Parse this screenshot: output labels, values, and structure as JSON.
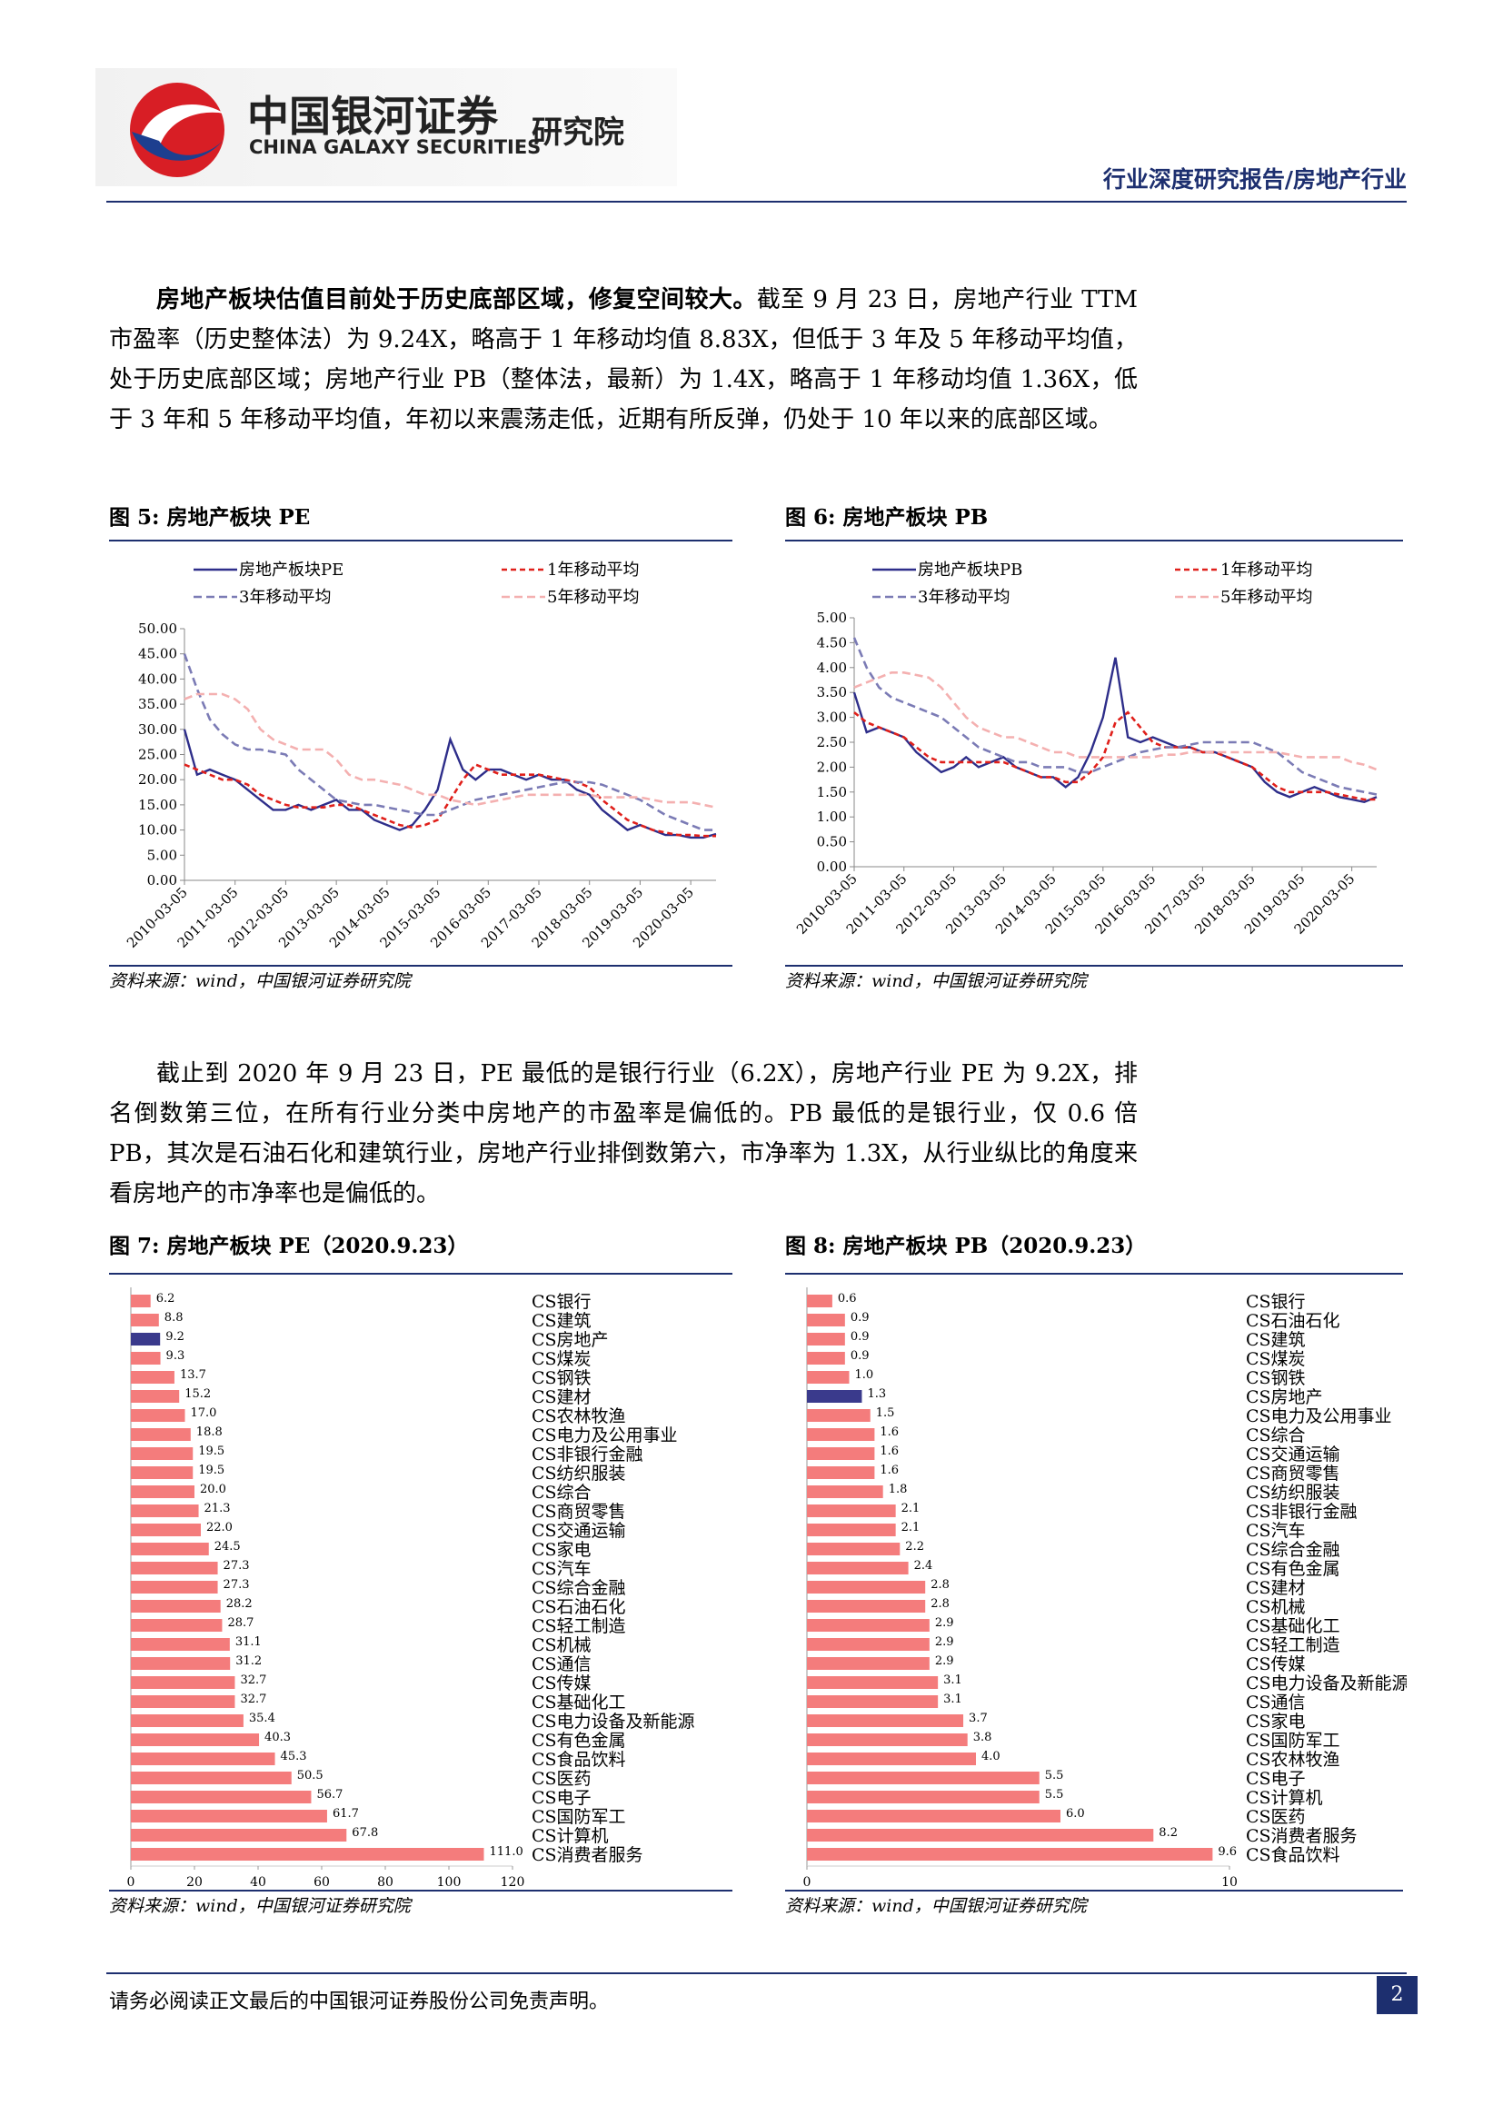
{
  "header": {
    "brand": "中国银河证券",
    "brand_en": "CHINA GALAXY SECURITIES",
    "institute": "研究院",
    "report_type": "行业深度研究报告/房地产行业"
  },
  "paragraphs": [
    {
      "bold": "房地产板块估值目前处于历史底部区域，修复空间较大。",
      "text": "截至 9 月 23 日，房地产行业 TTM 市盈率（历史整体法）为 9.24X，略高于 1 年移动均值 8.83X，但低于 3 年及 5 年移动平均值，处于历史底部区域；房地产行业 PB（整体法，最新）为 1.4X，略高于 1 年移动均值 1.36X，低于 3 年和 5 年移动平均值，年初以来震荡走低，近期有所反弹，仍处于 10 年以来的底部区域。"
    },
    {
      "text": "截止到 2020 年 9 月 23 日，PE 最低的是银行行业（6.2X），房地产行业 PE 为 9.2X，排名倒数第三位，在所有行业分类中房地产的市盈率是偏低的。PB 最低的是银行业，仅 0.6 倍 PB，其次是石油石化和建筑行业，房地产行业排倒数第六，市净率为 1.3X，从行业纵比的角度来看房地产的市净率也是偏低的。"
    }
  ],
  "chart_data": [
    {
      "type": "line",
      "title": "图 5: 房地产板块 PE",
      "source": "资料来源：wind，中国银河证券研究院",
      "categories": [
        "2010-03-05",
        null,
        null,
        null,
        "2011-03-05",
        null,
        null,
        null,
        "2012-03-05",
        null,
        null,
        null,
        "2013-03-05",
        null,
        null,
        null,
        "2014-03-05",
        null,
        null,
        null,
        "2015-03-05",
        null,
        null,
        null,
        "2016-03-05",
        null,
        null,
        null,
        "2017-03-05",
        null,
        null,
        null,
        "2018-03-05",
        null,
        null,
        null,
        "2019-03-05",
        null,
        null,
        null,
        "2020-03-05",
        null,
        null
      ],
      "series": [
        {
          "name": "房地产板块PE",
          "color": "#2e2e8a",
          "dash": "none",
          "values": [
            30,
            21,
            22,
            21,
            20,
            18,
            16,
            14,
            14,
            15,
            14,
            15,
            16,
            14,
            14,
            12,
            11,
            10,
            11,
            14,
            18,
            28,
            22,
            20,
            22,
            22,
            21,
            20,
            21,
            20,
            20,
            18,
            17,
            14,
            12,
            10,
            11,
            10,
            9,
            9,
            8.5,
            8.5,
            9.2
          ]
        },
        {
          "name": "1年移动平均",
          "color": "#e0201b",
          "dash": "6,4",
          "values": [
            23,
            22,
            21,
            20,
            20,
            19,
            17,
            16,
            15,
            14.5,
            14.5,
            14.5,
            15,
            15,
            14,
            13,
            12,
            11,
            10.5,
            11,
            12,
            16,
            20,
            23,
            22,
            21,
            21,
            21,
            21,
            20.5,
            20,
            19.5,
            18.5,
            16,
            14,
            12,
            11,
            10,
            9.5,
            9,
            9,
            8.8,
            8.8
          ]
        },
        {
          "name": "3年移动平均",
          "color": "#7b7bb5",
          "dash": "9,5",
          "values": [
            45,
            38,
            32,
            29,
            27,
            26,
            26,
            25.5,
            25,
            22,
            20,
            18,
            16,
            15.5,
            15,
            15,
            14.5,
            14,
            13.5,
            13,
            13,
            14,
            15,
            16,
            16.5,
            17,
            17.5,
            18,
            18.5,
            19,
            19.5,
            19.5,
            19.5,
            19,
            18,
            17,
            16,
            14.5,
            13,
            12,
            11,
            10,
            10
          ]
        },
        {
          "name": "5年移动平均",
          "color": "#f4b0b0",
          "dash": "9,5",
          "values": [
            36,
            37,
            37,
            37,
            36,
            34,
            30,
            28,
            27,
            26,
            26,
            26,
            24,
            21,
            20,
            20,
            19.5,
            19,
            18,
            17,
            17,
            16,
            15.5,
            15,
            15.5,
            16,
            16.5,
            17,
            17,
            17,
            17,
            17,
            17,
            16.5,
            16.5,
            16.5,
            16.5,
            16,
            15.5,
            15.5,
            15.5,
            15,
            14.5
          ]
        }
      ],
      "ylim": [
        0,
        50
      ],
      "yticks": [
        {
          "value": 0,
          "label": "0.00"
        },
        {
          "value": 5,
          "label": "5.00"
        },
        {
          "value": 10,
          "label": "10.00"
        },
        {
          "value": 15,
          "label": "15.00"
        },
        {
          "value": 20,
          "label": "20.00"
        },
        {
          "value": 25,
          "label": "25.00"
        },
        {
          "value": 30,
          "label": "30.00"
        },
        {
          "value": 35,
          "label": "35.00"
        },
        {
          "value": 40,
          "label": "40.00"
        },
        {
          "value": 45,
          "label": "45.00"
        },
        {
          "value": 50,
          "label": "50.00"
        }
      ]
    },
    {
      "type": "line",
      "title": "图 6: 房地产板块 PB",
      "source": "资料来源：wind，中国银河证券研究院",
      "categories": [
        "2010-03-05",
        null,
        null,
        null,
        "2011-03-05",
        null,
        null,
        null,
        "2012-03-05",
        null,
        null,
        null,
        "2013-03-05",
        null,
        null,
        null,
        "2014-03-05",
        null,
        null,
        null,
        "2015-03-05",
        null,
        null,
        null,
        "2016-03-05",
        null,
        null,
        null,
        "2017-03-05",
        null,
        null,
        null,
        "2018-03-05",
        null,
        null,
        null,
        "2019-03-05",
        null,
        null,
        null,
        "2020-03-05",
        null,
        null
      ],
      "series": [
        {
          "name": "房地产板块PB",
          "color": "#2e2e8a",
          "dash": "none",
          "values": [
            3.5,
            2.7,
            2.8,
            2.7,
            2.6,
            2.3,
            2.1,
            1.9,
            2.0,
            2.2,
            2.0,
            2.1,
            2.2,
            2.0,
            1.9,
            1.8,
            1.8,
            1.6,
            1.8,
            2.3,
            3.0,
            4.2,
            2.6,
            2.5,
            2.6,
            2.5,
            2.4,
            2.4,
            2.3,
            2.3,
            2.2,
            2.1,
            2.0,
            1.7,
            1.5,
            1.4,
            1.5,
            1.6,
            1.5,
            1.4,
            1.35,
            1.3,
            1.4
          ]
        },
        {
          "name": "1年移动平均",
          "color": "#e0201b",
          "dash": "6,4",
          "values": [
            3.1,
            2.9,
            2.8,
            2.7,
            2.6,
            2.4,
            2.2,
            2.1,
            2.1,
            2.1,
            2.1,
            2.1,
            2.1,
            2.0,
            1.9,
            1.8,
            1.8,
            1.7,
            1.7,
            1.9,
            2.2,
            2.9,
            3.1,
            2.8,
            2.5,
            2.4,
            2.4,
            2.4,
            2.3,
            2.3,
            2.2,
            2.1,
            2.0,
            1.8,
            1.6,
            1.5,
            1.5,
            1.5,
            1.5,
            1.45,
            1.4,
            1.35,
            1.35
          ]
        },
        {
          "name": "3年移动平均",
          "color": "#7b7bb5",
          "dash": "9,5",
          "values": [
            4.6,
            4.0,
            3.6,
            3.4,
            3.3,
            3.2,
            3.1,
            3.0,
            2.8,
            2.6,
            2.4,
            2.3,
            2.2,
            2.1,
            2.1,
            2.0,
            2.0,
            2.0,
            1.9,
            1.9,
            2.0,
            2.1,
            2.2,
            2.3,
            2.35,
            2.4,
            2.4,
            2.45,
            2.5,
            2.5,
            2.5,
            2.5,
            2.5,
            2.4,
            2.3,
            2.1,
            1.9,
            1.8,
            1.7,
            1.6,
            1.55,
            1.5,
            1.45
          ]
        },
        {
          "name": "5年移动平均",
          "color": "#f4b0b0",
          "dash": "9,5",
          "values": [
            3.6,
            3.7,
            3.8,
            3.9,
            3.9,
            3.85,
            3.8,
            3.6,
            3.3,
            3.0,
            2.8,
            2.7,
            2.6,
            2.6,
            2.5,
            2.4,
            2.3,
            2.3,
            2.2,
            2.2,
            2.2,
            2.2,
            2.2,
            2.2,
            2.2,
            2.25,
            2.25,
            2.3,
            2.3,
            2.3,
            2.3,
            2.3,
            2.3,
            2.3,
            2.3,
            2.25,
            2.2,
            2.2,
            2.2,
            2.2,
            2.1,
            2.05,
            1.95
          ]
        }
      ],
      "ylim": [
        0,
        5
      ],
      "yticks": [
        {
          "value": 0,
          "label": "0.00"
        },
        {
          "value": 0.5,
          "label": "0.50"
        },
        {
          "value": 1,
          "label": "1.00"
        },
        {
          "value": 1.5,
          "label": "1.50"
        },
        {
          "value": 2,
          "label": "2.00"
        },
        {
          "value": 2.5,
          "label": "2.50"
        },
        {
          "value": 3,
          "label": "3.00"
        },
        {
          "value": 3.5,
          "label": "3.50"
        },
        {
          "value": 4,
          "label": "4.00"
        },
        {
          "value": 4.5,
          "label": "4.50"
        },
        {
          "value": 5,
          "label": "5.00"
        }
      ]
    },
    {
      "type": "hbar",
      "title": "图 7: 房地产板块 PE（2020.9.23）",
      "source": "资料来源：wind，中国银河证券研究院",
      "categories": [
        "CS银行",
        "CS建筑",
        "CS房地产",
        "CS煤炭",
        "CS钢铁",
        "CS建材",
        "CS农林牧渔",
        "CS电力及公用事业",
        "CS非银行金融",
        "CS纺织服装",
        "CS综合",
        "CS商贸零售",
        "CS交通运输",
        "CS家电",
        "CS汽车",
        "CS综合金融",
        "CS石油石化",
        "CS轻工制造",
        "CS机械",
        "CS通信",
        "CS传媒",
        "CS基础化工",
        "CS电力设备及新能源",
        "CS有色金属",
        "CS食品饮料",
        "CS医药",
        "CS电子",
        "CS国防军工",
        "CS计算机",
        "CS消费者服务"
      ],
      "values": [
        6.2,
        8.8,
        9.2,
        9.3,
        13.7,
        15.2,
        17.0,
        18.8,
        19.5,
        19.5,
        20.0,
        21.3,
        22.0,
        24.5,
        27.3,
        27.3,
        28.2,
        28.7,
        31.1,
        31.2,
        32.7,
        32.7,
        35.4,
        40.3,
        45.3,
        50.5,
        56.7,
        61.7,
        67.8,
        111.0
      ],
      "value_labels": [
        "6.2",
        "8.8",
        "9.2",
        "9.3",
        "13.7",
        "15.2",
        "17.0",
        "18.8",
        "19.5",
        "19.5",
        "20.0",
        "21.3",
        "22.0",
        "24.5",
        "27.3",
        "27.3",
        "28.2",
        "28.7",
        "31.1",
        "31.2",
        "32.7",
        "32.7",
        "35.4",
        "40.3",
        "45.3",
        "50.5",
        "56.7",
        "61.7",
        "67.8",
        "111.0"
      ],
      "colors": [
        "#f47c7c",
        "#f47c7c",
        "#3a3a8c",
        "#f47c7c",
        "#f47c7c",
        "#f47c7c",
        "#f47c7c",
        "#f47c7c",
        "#f47c7c",
        "#f47c7c",
        "#f47c7c",
        "#f47c7c",
        "#f47c7c",
        "#f47c7c",
        "#f47c7c",
        "#f47c7c",
        "#f47c7c",
        "#f47c7c",
        "#f47c7c",
        "#f47c7c",
        "#f47c7c",
        "#f47c7c",
        "#f47c7c",
        "#f47c7c",
        "#f47c7c",
        "#f47c7c",
        "#f47c7c",
        "#f47c7c",
        "#f47c7c",
        "#f47c7c"
      ],
      "xlim": [
        0,
        120
      ],
      "xticks": [
        0,
        20,
        40,
        60,
        80,
        100,
        120
      ]
    },
    {
      "type": "hbar",
      "title": "图 8: 房地产板块 PB（2020.9.23）",
      "source": "资料来源：wind，中国银河证券研究院",
      "categories": [
        "CS银行",
        "CS石油石化",
        "CS建筑",
        "CS煤炭",
        "CS钢铁",
        "CS房地产",
        "CS电力及公用事业",
        "CS综合",
        "CS交通运输",
        "CS商贸零售",
        "CS纺织服装",
        "CS非银行金融",
        "CS汽车",
        "CS综合金融",
        "CS有色金属",
        "CS建材",
        "CS机械",
        "CS基础化工",
        "CS轻工制造",
        "CS传媒",
        "CS电力设备及新能源",
        "CS通信",
        "CS家电",
        "CS国防军工",
        "CS农林牧渔",
        "CS电子",
        "CS计算机",
        "CS医药",
        "CS消费者服务",
        "CS食品饮料"
      ],
      "values": [
        0.6,
        0.9,
        0.9,
        0.9,
        1.0,
        1.3,
        1.5,
        1.6,
        1.6,
        1.6,
        1.8,
        2.1,
        2.1,
        2.2,
        2.4,
        2.8,
        2.8,
        2.9,
        2.9,
        2.9,
        3.1,
        3.1,
        3.7,
        3.8,
        4.0,
        5.5,
        5.5,
        6.0,
        8.2,
        9.6
      ],
      "value_labels": [
        "0.6",
        "0.9",
        "0.9",
        "0.9",
        "1.0",
        "1.3",
        "1.5",
        "1.6",
        "1.6",
        "1.6",
        "1.8",
        "2.1",
        "2.1",
        "2.2",
        "2.4",
        "2.8",
        "2.8",
        "2.9",
        "2.9",
        "2.9",
        "3.1",
        "3.1",
        "3.7",
        "3.8",
        "4.0",
        "5.5",
        "5.5",
        "6.0",
        "8.2",
        "9.6"
      ],
      "colors": [
        "#f47c7c",
        "#f47c7c",
        "#f47c7c",
        "#f47c7c",
        "#f47c7c",
        "#3a3a8c",
        "#f47c7c",
        "#f47c7c",
        "#f47c7c",
        "#f47c7c",
        "#f47c7c",
        "#f47c7c",
        "#f47c7c",
        "#f47c7c",
        "#f47c7c",
        "#f47c7c",
        "#f47c7c",
        "#f47c7c",
        "#f47c7c",
        "#f47c7c",
        "#f47c7c",
        "#f47c7c",
        "#f47c7c",
        "#f47c7c",
        "#f47c7c",
        "#f47c7c",
        "#f47c7c",
        "#f47c7c",
        "#f47c7c",
        "#f47c7c"
      ],
      "xlim": [
        0,
        10
      ],
      "xticks": [
        0,
        10
      ]
    }
  ],
  "footer": {
    "disclaimer": "请务必阅读正文最后的中国银河证券股份公司免责声明。",
    "page": "2"
  }
}
